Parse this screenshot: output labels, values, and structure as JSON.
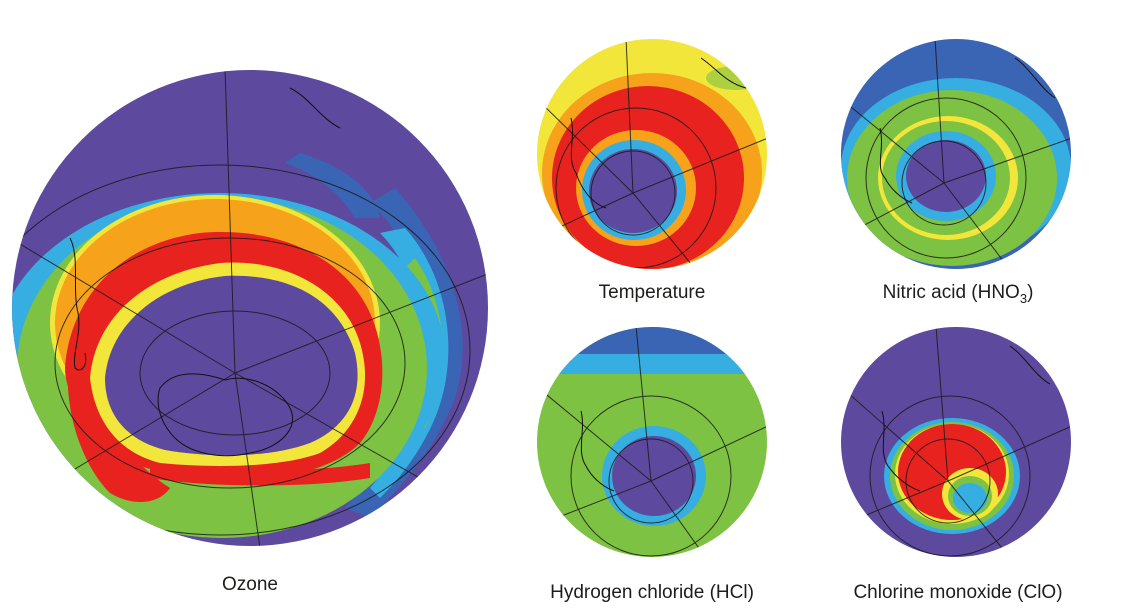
{
  "colors": {
    "violet": "#5d4a9e",
    "dark_blue": "#3a64b4",
    "light_blue": "#36aee2",
    "green": "#7dc242",
    "yellow": "#f3e63a",
    "orange": "#f7a21b",
    "red": "#e8221f"
  },
  "panels": {
    "ozone": {
      "label": "Ozone"
    },
    "temperature": {
      "label": "Temperature"
    },
    "nitric_acid": {
      "label": "Nitric acid (HNO",
      "subscript": "3",
      "suffix": ")"
    },
    "hydrogen_chloride": {
      "label": "Hydrogen chloride (HCl)"
    },
    "chlorine_monoxide": {
      "label": "Chlorine monoxide (ClO)"
    }
  }
}
